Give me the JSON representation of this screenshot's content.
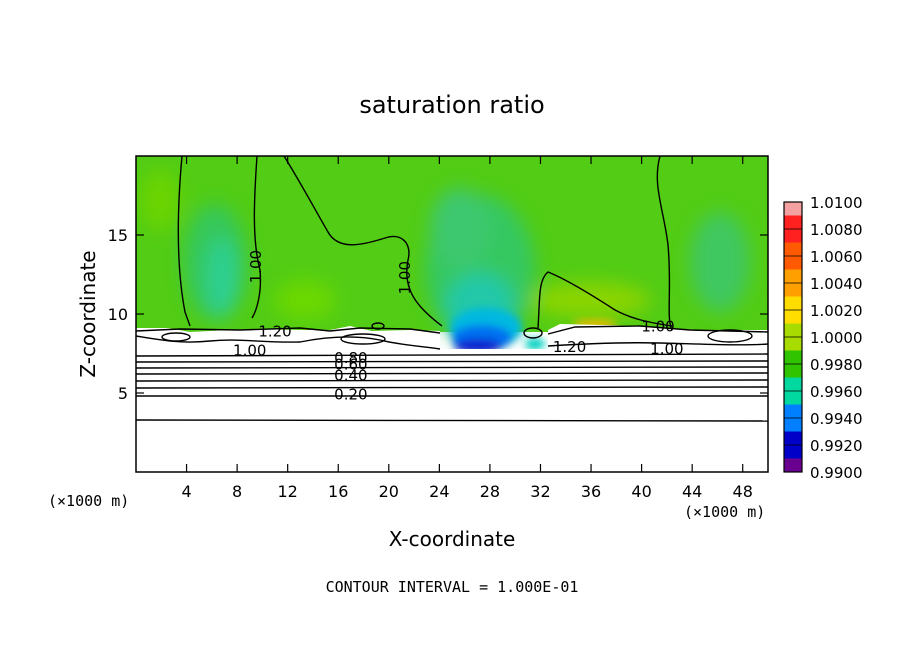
{
  "chart_data": {
    "type": "heatmap",
    "title": "saturation ratio",
    "xlabel": "X-coordinate",
    "ylabel": "Z-coordinate",
    "x_unit": "(×1000 m)",
    "y_unit": "(×1000 m)",
    "xlim": [
      0,
      50
    ],
    "ylim": [
      0,
      20
    ],
    "x_ticks": [
      4,
      8,
      12,
      16,
      20,
      24,
      28,
      32,
      36,
      40,
      44,
      48
    ],
    "y_ticks": [
      5,
      10,
      15
    ],
    "footer": "CONTOUR INTERVAL = 1.000E-01",
    "colorbar": {
      "labels": [
        "1.0100",
        "1.0080",
        "1.0060",
        "1.0040",
        "1.0020",
        "1.0000",
        "0.9980",
        "0.9960",
        "0.9940",
        "0.9920",
        "0.9900"
      ],
      "colors": [
        "#f4a0a0",
        "#ff2020",
        "#ff5a00",
        "#ffa000",
        "#ffdd00",
        "#a8dc00",
        "#30c400",
        "#00d8a0",
        "#0080ff",
        "#0000c8",
        "#6a0090"
      ]
    },
    "contour_labels": [
      {
        "text": "1.00",
        "x": 9.5,
        "z": 13.0
      },
      {
        "text": "1.00",
        "x": 21.3,
        "z": 12.3
      },
      {
        "text": "1.20",
        "x": 11.0,
        "z": 8.9
      },
      {
        "text": "1.00",
        "x": 9.0,
        "z": 7.7
      },
      {
        "text": "0.80",
        "x": 17.0,
        "z": 7.2
      },
      {
        "text": "0.60",
        "x": 17.0,
        "z": 6.8
      },
      {
        "text": "0.40",
        "x": 17.0,
        "z": 6.1
      },
      {
        "text": "0.20",
        "x": 17.0,
        "z": 4.9
      },
      {
        "text": "1.20",
        "x": 34.3,
        "z": 7.9
      },
      {
        "text": "1.00",
        "x": 41.3,
        "z": 9.2
      },
      {
        "text": "1.00",
        "x": 42.0,
        "z": 7.8
      }
    ]
  }
}
